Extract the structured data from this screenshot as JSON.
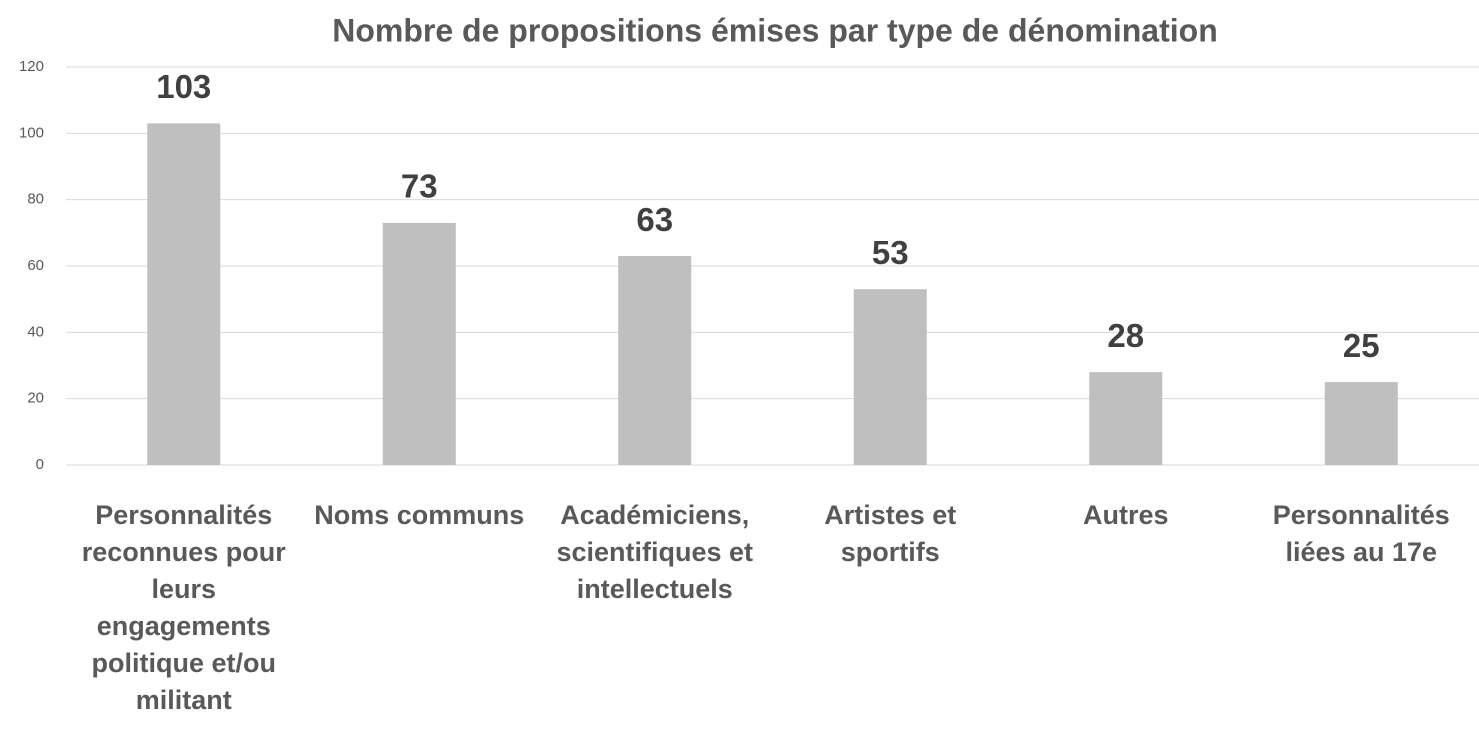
{
  "chart_data": {
    "type": "bar",
    "title": "Nombre de propositions émises  par type de dénomination",
    "categories": [
      "Personnalités reconnues pour leurs engagements politique et/ou militant",
      "Noms communs",
      "Académiciens, scientifiques et intellectuels",
      "Artistes et sportifs",
      "Autres",
      "Personnalités liées au 17e"
    ],
    "values": [
      103,
      73,
      63,
      53,
      28,
      25
    ],
    "color": "#bfbfbf",
    "ylim": [
      0,
      120
    ],
    "yticks": [
      0,
      20,
      40,
      60,
      80,
      100,
      120
    ],
    "grid": true
  }
}
